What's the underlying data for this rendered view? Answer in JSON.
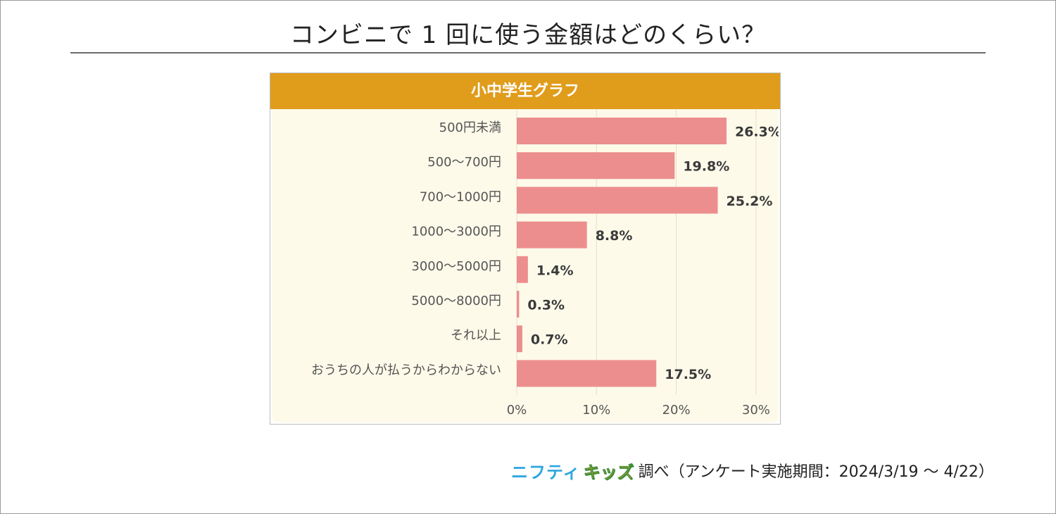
{
  "title": "コンビニで 1 回に使う金額はどのくらい？",
  "panel_header": "小中学生グラフ",
  "footer": {
    "brand_part1": "ニフティ",
    "brand_part2": "キッズ",
    "survey": "調べ（アンケート実施期間：2024/3/19 ～ 4/22）"
  },
  "colors": {
    "bar": "#ec8e8e",
    "header": "#e09c1b",
    "plot_bg": "#fefaea",
    "grid": "#e6e0cc",
    "label": "#555555",
    "value": "#3a3a3a"
  },
  "chart_data": {
    "type": "bar",
    "orientation": "horizontal",
    "title": "小中学生グラフ",
    "categories": [
      "500円未満",
      "500～700円",
      "700～1000円",
      "1000～3000円",
      "3000～5000円",
      "5000～8000円",
      "それ以上",
      "おうちの人が払うからわからない"
    ],
    "values": [
      26.3,
      19.8,
      25.2,
      8.8,
      1.4,
      0.3,
      0.7,
      17.5
    ],
    "value_labels": [
      "26.3%",
      "19.8%",
      "25.2%",
      "8.8%",
      "1.4%",
      "0.3%",
      "0.7%",
      "17.5%"
    ],
    "xlim": [
      0,
      30
    ],
    "xticks": [
      0,
      10,
      20,
      30
    ],
    "xtick_labels": [
      "0%",
      "10%",
      "20%",
      "30%"
    ],
    "xlabel": "",
    "ylabel": "",
    "grid": true
  }
}
